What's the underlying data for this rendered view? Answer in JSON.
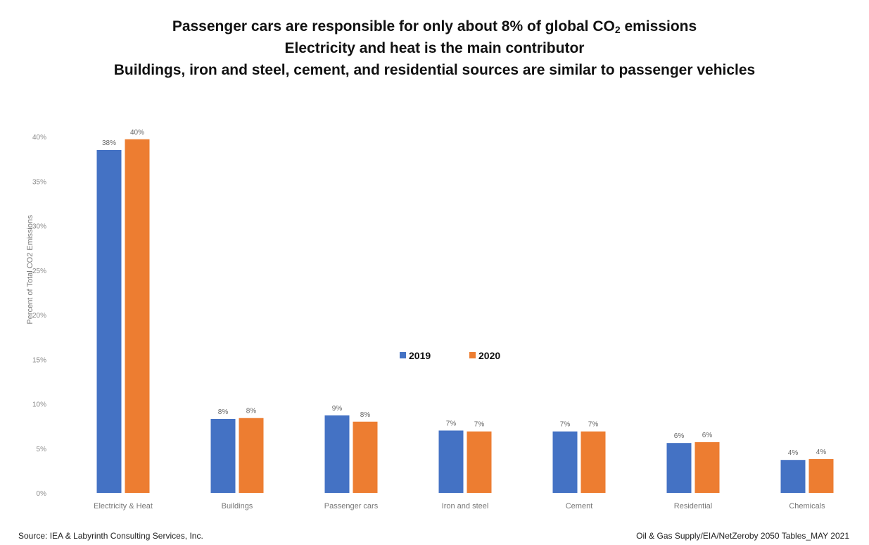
{
  "header": {
    "title_line1_pre": "Passenger cars are responsible for only about 8% of global CO",
    "title_line1_sub": "2",
    "title_line1_post": " emissions",
    "title_line2": "Electricity and heat is the main contributor",
    "title_line3": "Buildings, iron and steel, cement, and residential sources are similar to passenger vehicles"
  },
  "footer": {
    "source": "Source: IEA & Labyrinth Consulting Services, Inc.",
    "reference": "Oil & Gas Supply/EIA/NetZeroby 2050 Tables_MAY 2021"
  },
  "colors": {
    "series_2019": "#4472c4",
    "series_2020": "#ed7d31"
  },
  "chart_data": {
    "type": "bar",
    "title": "Passenger cars are responsible for only about 8% of global CO2 emissions",
    "xlabel": "",
    "ylabel": "Percent of Total CO2 Emissions",
    "ylim": [
      0,
      40
    ],
    "yticks": [
      0,
      5,
      10,
      15,
      20,
      25,
      30,
      35,
      40
    ],
    "ytick_labels": [
      "0%",
      "5%",
      "10%",
      "15%",
      "20%",
      "25%",
      "30%",
      "35%",
      "40%"
    ],
    "grid": false,
    "legend_position": "center",
    "categories": [
      "Electricity & Heat",
      "Buildings",
      "Passenger cars",
      "Iron and steel",
      "Cement",
      "Residential",
      "Chemicals"
    ],
    "series": [
      {
        "name": "2019",
        "values": [
          38.5,
          8.3,
          8.7,
          7.0,
          6.9,
          5.6,
          3.7
        ],
        "labels": [
          "38%",
          "8%",
          "9%",
          "7%",
          "7%",
          "6%",
          "4%"
        ]
      },
      {
        "name": "2020",
        "values": [
          39.7,
          8.4,
          8.0,
          6.9,
          6.9,
          5.7,
          3.8
        ],
        "labels": [
          "40%",
          "8%",
          "8%",
          "7%",
          "7%",
          "6%",
          "4%"
        ]
      }
    ]
  }
}
